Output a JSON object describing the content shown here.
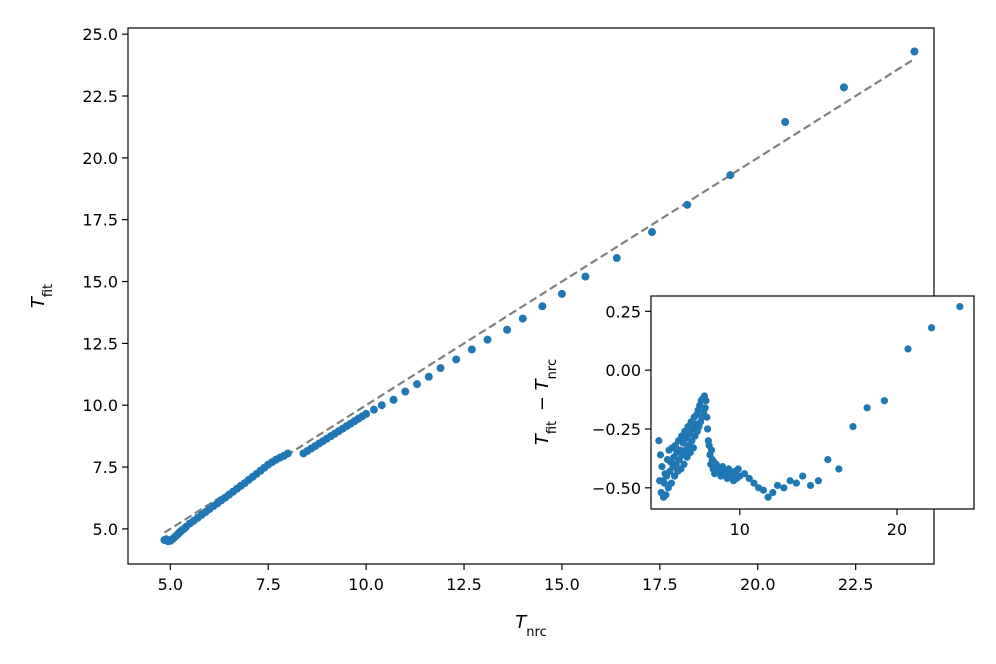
{
  "chart_data": [
    {
      "panel": "main",
      "type": "scatter",
      "xlabel": "T_nrc",
      "ylabel": "T_fit",
      "xlim": [
        3.92,
        24.5
      ],
      "ylim": [
        3.58,
        25.25
      ],
      "xticks": [
        "5.0",
        "7.5",
        "10.0",
        "12.5",
        "15.0",
        "17.5",
        "20.0",
        "22.5"
      ],
      "yticks": [
        "5.0",
        "7.5",
        "10.0",
        "12.5",
        "15.0",
        "17.5",
        "20.0",
        "22.5",
        "25.0"
      ],
      "colors": {
        "points": "#1f77b4",
        "reference_line": "#808080"
      },
      "reference_line": {
        "style": "dashed",
        "x": [
          4.85,
          24.0
        ],
        "y": [
          4.85,
          24.0
        ]
      },
      "series": [
        {
          "x": [
            4.85,
            4.9,
            4.95,
            5.0,
            5.05,
            5.1,
            5.15,
            5.2,
            5.25,
            5.3,
            5.35,
            5.4,
            5.5,
            5.6,
            5.7,
            5.8,
            5.9,
            6.0,
            6.1,
            6.2,
            6.3,
            6.4,
            6.5,
            6.6,
            6.7,
            6.8,
            6.9,
            7.0,
            7.1,
            7.2,
            7.3,
            7.4,
            7.5,
            7.6,
            7.7,
            7.8,
            7.9,
            8.0,
            8.4,
            8.5,
            8.6,
            8.7,
            8.8,
            8.9,
            9.0,
            9.1,
            9.2,
            9.3,
            9.4,
            9.5,
            9.6,
            9.7,
            9.8,
            9.9,
            10.0,
            10.2,
            10.4,
            10.7,
            11.0,
            11.3,
            11.6,
            11.9,
            12.3,
            12.7,
            13.1,
            13.6,
            14.0,
            14.5,
            15.0,
            15.6,
            16.4,
            17.3,
            18.2,
            19.3,
            20.7,
            22.2,
            24.0
          ],
          "y": [
            4.55,
            4.58,
            4.5,
            4.52,
            4.58,
            4.65,
            4.72,
            4.8,
            4.88,
            4.95,
            5.0,
            5.08,
            5.22,
            5.33,
            5.45,
            5.57,
            5.68,
            5.8,
            5.92,
            6.03,
            6.15,
            6.26,
            6.38,
            6.5,
            6.62,
            6.74,
            6.85,
            6.98,
            7.1,
            7.22,
            7.35,
            7.47,
            7.6,
            7.7,
            7.8,
            7.88,
            7.95,
            8.05,
            8.05,
            8.15,
            8.25,
            8.35,
            8.45,
            8.55,
            8.65,
            8.75,
            8.85,
            8.95,
            9.05,
            9.15,
            9.25,
            9.35,
            9.45,
            9.55,
            9.65,
            9.82,
            10.0,
            10.22,
            10.55,
            10.85,
            11.15,
            11.5,
            11.85,
            12.25,
            12.65,
            13.05,
            13.5,
            14.0,
            14.5,
            15.2,
            15.95,
            17.0,
            18.1,
            19.3,
            21.45,
            22.85,
            24.3
          ]
        }
      ]
    },
    {
      "panel": "inset",
      "type": "scatter",
      "xlabel": "",
      "ylabel": "T_fit − T_nrc",
      "xlim": [
        4.35,
        24.9
      ],
      "ylim": [
        -0.59,
        0.315
      ],
      "xticks": [
        "10",
        "20"
      ],
      "yticks": [
        "0.25",
        "0.00",
        "−0.25",
        "−0.50"
      ],
      "colors": {
        "points": "#1f77b4"
      },
      "series": [
        {
          "x": [
            4.85,
            4.9,
            4.95,
            5.0,
            5.05,
            5.1,
            5.15,
            5.2,
            5.25,
            5.3,
            5.35,
            5.4,
            5.45,
            5.5,
            5.55,
            5.6,
            5.65,
            5.7,
            5.75,
            5.8,
            5.85,
            5.9,
            5.95,
            6.0,
            6.05,
            6.1,
            6.15,
            6.2,
            6.25,
            6.3,
            6.35,
            6.4,
            6.45,
            6.5,
            6.55,
            6.6,
            6.65,
            6.7,
            6.75,
            6.8,
            6.85,
            6.9,
            6.95,
            7.0,
            7.05,
            7.1,
            7.15,
            7.2,
            7.25,
            7.3,
            7.35,
            7.4,
            7.45,
            7.5,
            7.55,
            7.6,
            7.65,
            7.7,
            7.75,
            7.8,
            7.85,
            7.9,
            7.95,
            8.0,
            8.05,
            8.1,
            8.15,
            8.2,
            8.25,
            8.3,
            8.35,
            8.4,
            8.5,
            8.6,
            8.7,
            8.8,
            8.9,
            9.0,
            9.1,
            9.2,
            9.3,
            9.4,
            9.5,
            9.6,
            9.7,
            9.8,
            9.9,
            10.0,
            10.3,
            10.6,
            10.9,
            11.2,
            11.5,
            11.8,
            12.1,
            12.4,
            12.8,
            13.2,
            13.6,
            14.0,
            14.5,
            15.0,
            15.6,
            16.3,
            17.2,
            18.1,
            19.2,
            20.7,
            22.2,
            24.0
          ],
          "y": [
            -0.3,
            -0.47,
            -0.36,
            -0.52,
            -0.41,
            -0.47,
            -0.54,
            -0.48,
            -0.44,
            -0.53,
            -0.45,
            -0.38,
            -0.5,
            -0.34,
            -0.43,
            -0.39,
            -0.48,
            -0.33,
            -0.41,
            -0.37,
            -0.45,
            -0.32,
            -0.4,
            -0.35,
            -0.43,
            -0.3,
            -0.38,
            -0.34,
            -0.42,
            -0.28,
            -0.36,
            -0.31,
            -0.4,
            -0.26,
            -0.34,
            -0.29,
            -0.37,
            -0.24,
            -0.32,
            -0.27,
            -0.35,
            -0.22,
            -0.3,
            -0.25,
            -0.33,
            -0.2,
            -0.28,
            -0.23,
            -0.19,
            -0.26,
            -0.17,
            -0.24,
            -0.15,
            -0.22,
            -0.13,
            -0.2,
            -0.12,
            -0.18,
            -0.11,
            -0.16,
            -0.13,
            -0.2,
            -0.25,
            -0.3,
            -0.32,
            -0.36,
            -0.4,
            -0.34,
            -0.38,
            -0.42,
            -0.39,
            -0.44,
            -0.4,
            -0.43,
            -0.42,
            -0.45,
            -0.41,
            -0.44,
            -0.43,
            -0.46,
            -0.42,
            -0.45,
            -0.44,
            -0.47,
            -0.43,
            -0.46,
            -0.42,
            -0.45,
            -0.44,
            -0.46,
            -0.48,
            -0.5,
            -0.51,
            -0.54,
            -0.52,
            -0.49,
            -0.5,
            -0.47,
            -0.48,
            -0.45,
            -0.49,
            -0.47,
            -0.38,
            -0.42,
            -0.24,
            -0.16,
            -0.13,
            0.09,
            0.18,
            0.27
          ]
        }
      ]
    }
  ]
}
